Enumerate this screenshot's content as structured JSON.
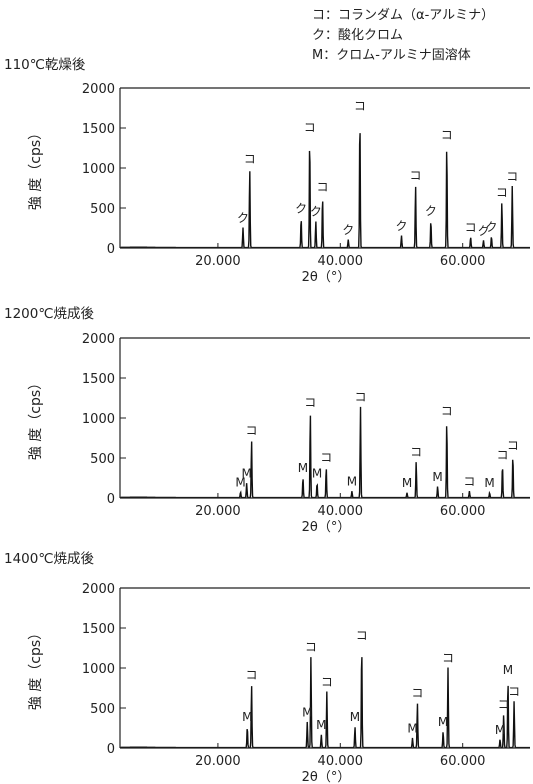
{
  "legend": [
    "コ：コランダム（α-アルミナ）",
    "ク：酸化クロム",
    "M：クロム-アルミナ固溶体"
  ],
  "chart_data": [
    {
      "type": "line",
      "title": "110℃乾燥後",
      "xlabel": "2θ（°）",
      "ylabel": "強 度（cps）",
      "xlim": [
        4,
        71
      ],
      "ylim": [
        0,
        2000
      ],
      "xticks": [
        "20.000",
        "40.000",
        "60.000"
      ],
      "yticks": [
        "0",
        "500",
        "1000",
        "1500",
        "2000"
      ],
      "peaks": [
        {
          "x": 24.1,
          "y": 250,
          "label": "ク"
        },
        {
          "x": 25.2,
          "y": 990,
          "label": "コ"
        },
        {
          "x": 33.6,
          "y": 370,
          "label": "ク"
        },
        {
          "x": 35.0,
          "y": 1380,
          "label": "コ"
        },
        {
          "x": 36.0,
          "y": 330,
          "label": "ク"
        },
        {
          "x": 37.1,
          "y": 640,
          "label": "コ"
        },
        {
          "x": 41.3,
          "y": 100,
          "label": "ク"
        },
        {
          "x": 43.2,
          "y": 1650,
          "label": "コ"
        },
        {
          "x": 50.0,
          "y": 150,
          "label": "ク"
        },
        {
          "x": 52.3,
          "y": 780,
          "label": "コ"
        },
        {
          "x": 54.8,
          "y": 340,
          "label": "ク"
        },
        {
          "x": 57.4,
          "y": 1290,
          "label": "コ"
        },
        {
          "x": 61.3,
          "y": 130,
          "label": "コ"
        },
        {
          "x": 63.4,
          "y": 90,
          "label": "ク"
        },
        {
          "x": 64.7,
          "y": 140,
          "label": "ク"
        },
        {
          "x": 66.4,
          "y": 570,
          "label": "コ"
        },
        {
          "x": 68.1,
          "y": 770,
          "label": "コ"
        }
      ]
    },
    {
      "type": "line",
      "title": "1200℃焼成後",
      "xlabel": "2θ（°）",
      "ylabel": "強 度（cps）",
      "xlim": [
        4,
        71
      ],
      "ylim": [
        0,
        2000
      ],
      "xticks": [
        "20.000",
        "40.000",
        "60.000"
      ],
      "yticks": [
        "0",
        "500",
        "1000",
        "1500",
        "2000"
      ],
      "peaks": [
        {
          "x": 23.7,
          "y": 70,
          "label": "M"
        },
        {
          "x": 24.7,
          "y": 180,
          "label": "M"
        },
        {
          "x": 25.5,
          "y": 720,
          "label": "コ"
        },
        {
          "x": 33.9,
          "y": 250,
          "label": "M"
        },
        {
          "x": 35.1,
          "y": 1070,
          "label": "コ"
        },
        {
          "x": 36.2,
          "y": 180,
          "label": "M"
        },
        {
          "x": 37.7,
          "y": 380,
          "label": "コ"
        },
        {
          "x": 41.9,
          "y": 80,
          "label": "M"
        },
        {
          "x": 43.3,
          "y": 1140,
          "label": "コ"
        },
        {
          "x": 50.9,
          "y": 60,
          "label": "M"
        },
        {
          "x": 52.4,
          "y": 450,
          "label": "コ"
        },
        {
          "x": 55.9,
          "y": 140,
          "label": "M"
        },
        {
          "x": 57.4,
          "y": 960,
          "label": "コ"
        },
        {
          "x": 61.1,
          "y": 80,
          "label": "コ"
        },
        {
          "x": 64.4,
          "y": 60,
          "label": "M"
        },
        {
          "x": 66.5,
          "y": 410,
          "label": "コ"
        },
        {
          "x": 68.2,
          "y": 530,
          "label": "コ"
        }
      ]
    },
    {
      "type": "line",
      "title": "1400℃焼成後",
      "xlabel": "2θ（°）",
      "ylabel": "強 度（cps）",
      "xlim": [
        4,
        71
      ],
      "ylim": [
        0,
        2000
      ],
      "xticks": [
        "20.000",
        "40.000",
        "60.000"
      ],
      "yticks": [
        "0",
        "500",
        "1000",
        "1500",
        "2000"
      ],
      "peaks": [
        {
          "x": 24.8,
          "y": 260,
          "label": "M"
        },
        {
          "x": 25.5,
          "y": 790,
          "label": "コ"
        },
        {
          "x": 34.6,
          "y": 320,
          "label": "M"
        },
        {
          "x": 35.2,
          "y": 1140,
          "label": "コ"
        },
        {
          "x": 36.9,
          "y": 160,
          "label": "M"
        },
        {
          "x": 37.8,
          "y": 700,
          "label": "コ"
        },
        {
          "x": 42.4,
          "y": 260,
          "label": "M"
        },
        {
          "x": 43.5,
          "y": 1280,
          "label": "コ"
        },
        {
          "x": 51.8,
          "y": 120,
          "label": "M"
        },
        {
          "x": 52.6,
          "y": 560,
          "label": "コ"
        },
        {
          "x": 56.8,
          "y": 200,
          "label": "M"
        },
        {
          "x": 57.6,
          "y": 1000,
          "label": "コ"
        },
        {
          "x": 66.1,
          "y": 100,
          "label": "M"
        },
        {
          "x": 66.7,
          "y": 420,
          "label": "コ"
        },
        {
          "x": 67.4,
          "y": 850,
          "label": "M"
        },
        {
          "x": 68.4,
          "y": 580,
          "label": "コ"
        }
      ]
    }
  ]
}
